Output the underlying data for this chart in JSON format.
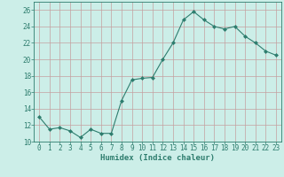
{
  "x": [
    0,
    1,
    2,
    3,
    4,
    5,
    6,
    7,
    8,
    9,
    10,
    11,
    12,
    13,
    14,
    15,
    16,
    17,
    18,
    19,
    20,
    21,
    22,
    23
  ],
  "y": [
    13.0,
    11.5,
    11.7,
    11.3,
    10.5,
    11.5,
    11.0,
    11.0,
    15.0,
    17.5,
    17.7,
    17.8,
    20.0,
    22.0,
    24.8,
    25.8,
    24.8,
    24.0,
    23.7,
    24.0,
    22.8,
    22.0,
    21.0,
    20.5
  ],
  "line_color": "#2e7d6e",
  "marker": "D",
  "marker_size": 2.0,
  "bg_color": "#cceee8",
  "grid_color": "#c4a0a0",
  "xlabel": "Humidex (Indice chaleur)",
  "xlim": [
    -0.5,
    23.5
  ],
  "ylim": [
    10,
    27
  ],
  "yticks": [
    10,
    12,
    14,
    16,
    18,
    20,
    22,
    24,
    26
  ],
  "xticks": [
    0,
    1,
    2,
    3,
    4,
    5,
    6,
    7,
    8,
    9,
    10,
    11,
    12,
    13,
    14,
    15,
    16,
    17,
    18,
    19,
    20,
    21,
    22,
    23
  ],
  "font_color": "#2e7d6e",
  "tick_fontsize": 5.5,
  "xlabel_fontsize": 6.5
}
